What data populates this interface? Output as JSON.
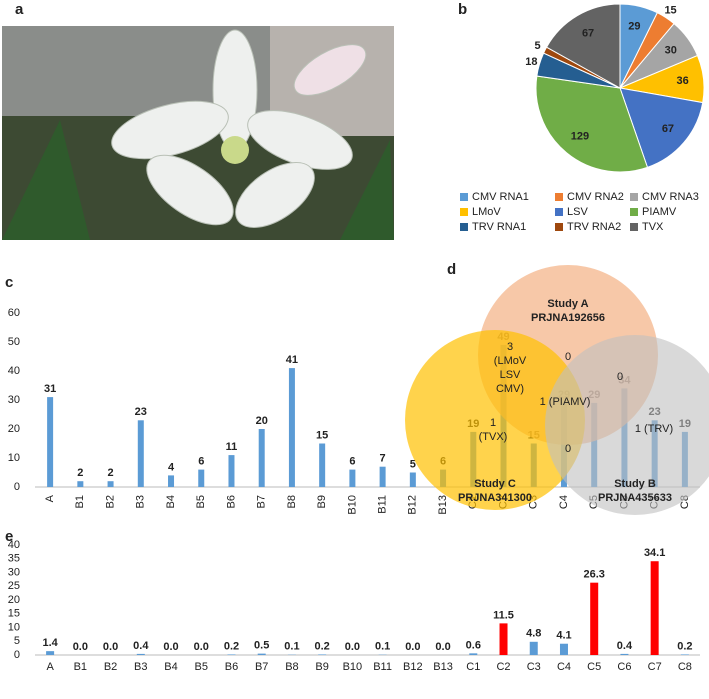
{
  "panel_labels": [
    "a",
    "b",
    "c",
    "d",
    "e"
  ],
  "chart_data": [
    {
      "type": "pie",
      "categories": [
        "CMV RNA1",
        "CMV RNA2",
        "CMV RNA3",
        "LMoV",
        "LSV",
        "PIAMV",
        "TRV RNA1",
        "TRV RNA2",
        "TVX"
      ],
      "values": [
        29,
        15,
        30,
        36,
        67,
        129,
        18,
        5,
        67
      ],
      "colors": [
        "#5b9bd5",
        "#ed7d31",
        "#a5a5a5",
        "#ffc000",
        "#4472c4",
        "#70ad47",
        "#255e91",
        "#9e480e",
        "#636363"
      ]
    },
    {
      "type": "bar",
      "categories": [
        "A",
        "B1",
        "B2",
        "B3",
        "B4",
        "B5",
        "B6",
        "B7",
        "B8",
        "B9",
        "B10",
        "B11",
        "B12",
        "B13",
        "C1",
        "C2",
        "C3",
        "C4",
        "C5",
        "C6",
        "C7",
        "C8"
      ],
      "values": [
        31,
        2,
        2,
        23,
        4,
        6,
        11,
        20,
        41,
        15,
        6,
        7,
        5,
        6,
        19,
        49,
        15,
        29,
        29,
        34,
        23,
        19
      ],
      "color": "#5b9bd5",
      "ylim": [
        0,
        60
      ],
      "yticks": [
        0,
        10,
        20,
        30,
        40,
        50,
        60
      ],
      "grid": false
    },
    {
      "type": "venn",
      "sets": [
        {
          "name": "Study A",
          "accession": "PRJNA192656",
          "color": "#f4b183"
        },
        {
          "name": "Study C",
          "accession": "PRJNA341300",
          "color": "#ffc000"
        },
        {
          "name": "Study B",
          "accession": "PRJNA435633",
          "color": "#bfbfbf"
        }
      ],
      "regions": [
        {
          "lines": [
            "0"
          ]
        },
        {
          "lines": [
            "3",
            "(LMoV",
            "LSV",
            "CMV)"
          ]
        },
        {
          "lines": [
            "0"
          ]
        },
        {
          "lines": [
            "1 (PIAMV)"
          ]
        },
        {
          "lines": [
            "1",
            "(TVX)"
          ]
        },
        {
          "lines": [
            "1 (TRV)"
          ]
        },
        {
          "lines": [
            "0"
          ]
        }
      ]
    },
    {
      "type": "bar",
      "categories": [
        "A",
        "B1",
        "B2",
        "B3",
        "B4",
        "B5",
        "B6",
        "B7",
        "B8",
        "B9",
        "B10",
        "B11",
        "B12",
        "B13",
        "C1",
        "C2",
        "C3",
        "C4",
        "C5",
        "C6",
        "C7",
        "C8"
      ],
      "values": [
        1.4,
        0.0,
        0.0,
        0.4,
        0.0,
        0.0,
        0.2,
        0.5,
        0.1,
        0.2,
        0.0,
        0.1,
        0.0,
        0.0,
        0.6,
        11.5,
        4.8,
        4.1,
        26.3,
        0.4,
        34.1,
        0.2
      ],
      "value_labels": [
        "1.4",
        "0.0",
        "0.0",
        "0.4",
        "0.0",
        "0.0",
        "0.2",
        "0.5",
        "0.1",
        "0.2",
        "0.0",
        "0.1",
        "0.0",
        "0.0",
        "0.6",
        "11.5",
        "4.8",
        "4.1",
        "26.3",
        "0.4",
        "34.1",
        "0.2"
      ],
      "colors": [
        "#5b9bd5",
        "#5b9bd5",
        "#5b9bd5",
        "#5b9bd5",
        "#5b9bd5",
        "#5b9bd5",
        "#5b9bd5",
        "#5b9bd5",
        "#5b9bd5",
        "#5b9bd5",
        "#5b9bd5",
        "#5b9bd5",
        "#5b9bd5",
        "#5b9bd5",
        "#5b9bd5",
        "#ff0000",
        "#5b9bd5",
        "#5b9bd5",
        "#ff0000",
        "#5b9bd5",
        "#ff0000",
        "#5b9bd5"
      ],
      "ylim": [
        0,
        40
      ],
      "yticks": [
        0,
        5,
        10,
        15,
        20,
        25,
        30,
        35,
        40
      ],
      "grid": false
    }
  ]
}
